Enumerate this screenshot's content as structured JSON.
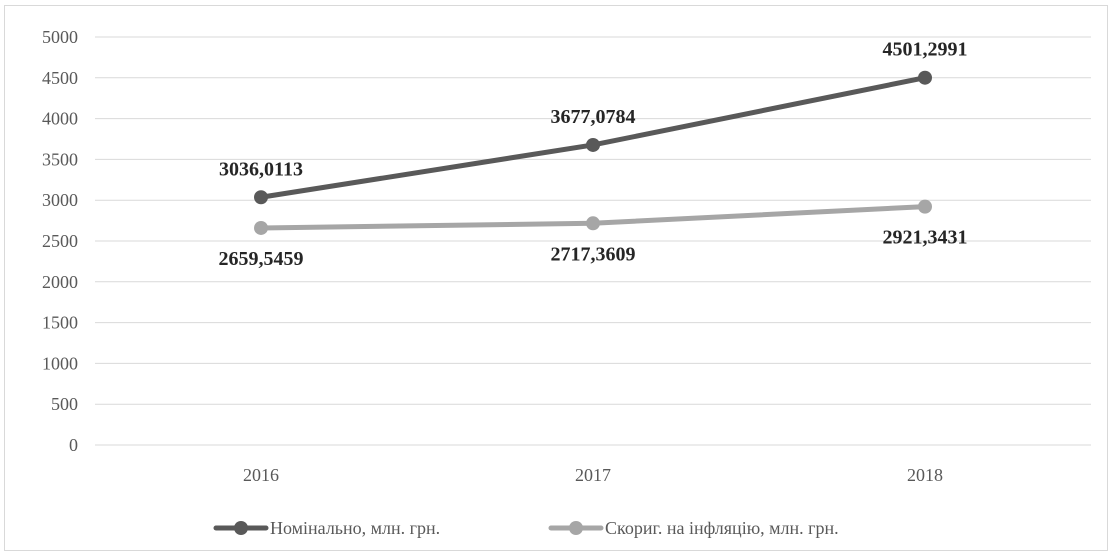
{
  "chart_data": {
    "type": "line",
    "title": "",
    "xlabel": "",
    "ylabel": "",
    "categories": [
      "2016",
      "2017",
      "2018"
    ],
    "ylim": [
      0,
      5000
    ],
    "y_ticks": [
      "0",
      "500",
      "1000",
      "1500",
      "2000",
      "2500",
      "3000",
      "3500",
      "4000",
      "4500",
      "5000"
    ],
    "grid": true,
    "legend_position": "bottom",
    "series": [
      {
        "name": "Номінально, млн. грн.",
        "values": [
          3036.0113,
          3677.0784,
          4501.2991
        ],
        "labels": [
          "3036,0113",
          "3677,0784",
          "4501,2991"
        ],
        "color": "#595959",
        "label_position": "above"
      },
      {
        "name": "Скориг. на інфляцію, млн. грн.",
        "values": [
          2659.5459,
          2717.3609,
          2921.3431
        ],
        "labels": [
          "2659,5459",
          "2717,3609",
          "2921,3431"
        ],
        "color": "#a6a6a6",
        "label_position": "below"
      }
    ]
  }
}
